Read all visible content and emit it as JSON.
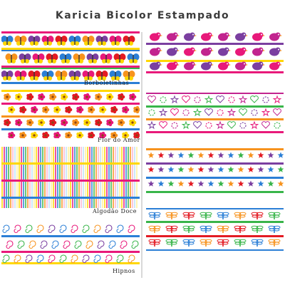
{
  "title": "Karicia Bicolor Estampado",
  "labels": {
    "borboletinhas": "Borboletinhas",
    "flor_do_amor": "Flor do Amor",
    "algodao_doce": "Algodão Doce",
    "hipnos": "Hipnos"
  },
  "colors": {
    "pink": "#e8197a",
    "yellow": "#ffd700",
    "blue": "#2b7fd6",
    "green": "#39b54a",
    "orange": "#f7931e",
    "red": "#e31b23",
    "purple": "#7b3fa0",
    "magenta": "#c2248f"
  },
  "patterns": [
    {
      "name": "Borboletinhas",
      "motif": "butterfly-icon"
    },
    {
      "name": "Flor do Amor",
      "motif": "flower-icon"
    },
    {
      "name": "Algodão Doce",
      "motif": "stripe-pattern"
    },
    {
      "name": "Hipnos",
      "motif": "swirl-icon"
    },
    {
      "name": "",
      "motif": "bird-icon"
    },
    {
      "name": "",
      "motif": "heart-star-icon"
    },
    {
      "name": "",
      "motif": "star-icon"
    },
    {
      "name": "",
      "motif": "dragonfly-icon"
    }
  ]
}
